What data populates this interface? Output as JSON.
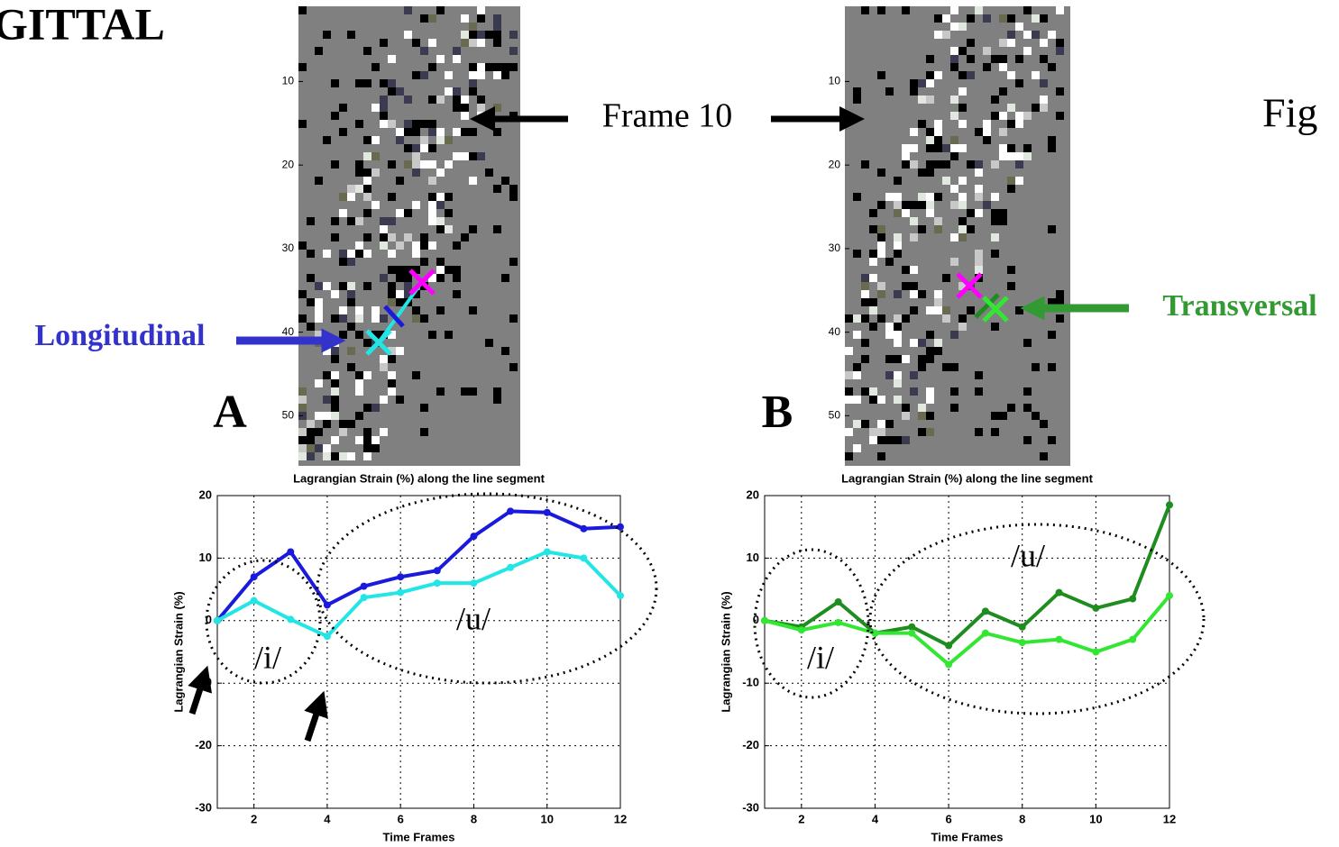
{
  "heading": "GITTAL",
  "figure_label": "Fig",
  "frame_label": "Frame 10",
  "images": [
    {
      "panel_label": "A",
      "arrow_label": "Longitudinal",
      "ylim": [
        1,
        56
      ],
      "yticks": [
        10,
        20,
        30,
        40,
        50
      ]
    },
    {
      "panel_label": "B",
      "arrow_label": "Transversal",
      "ylim": [
        1,
        56
      ],
      "yticks": [
        10,
        20,
        30,
        40,
        50
      ]
    }
  ],
  "chart_data": [
    {
      "type": "line",
      "title": "Lagrangian Strain (%) along the line segment",
      "x_label": "Time Frames",
      "y_label": "Lagrangian Strain (%)",
      "x": [
        1,
        2,
        3,
        4,
        5,
        6,
        7,
        8,
        9,
        10,
        11,
        12
      ],
      "xlim": [
        1,
        12
      ],
      "xticks": [
        2,
        4,
        6,
        8,
        10,
        12
      ],
      "ylim": [
        -30,
        20
      ],
      "yticks": [
        -30,
        -20,
        -10,
        0,
        10,
        20
      ],
      "grid": true,
      "annotations": [
        "/i/",
        "/u/"
      ],
      "series": [
        {
          "color": "#1a1adc",
          "values": [
            0,
            7,
            11,
            2.5,
            5.5,
            7,
            8,
            13.5,
            17.5,
            17.3,
            14.7,
            15
          ]
        },
        {
          "color": "#22e5e5",
          "values": [
            0,
            3.2,
            0.2,
            -2.5,
            3.7,
            4.5,
            6,
            6,
            8.5,
            11,
            10,
            4
          ]
        }
      ]
    },
    {
      "type": "line",
      "title": "Lagrangian Strain (%) along the line segment",
      "x_label": "Time Frames",
      "y_label": "Lagrangian Strain (%)",
      "x": [
        1,
        2,
        3,
        4,
        5,
        6,
        7,
        8,
        9,
        10,
        11,
        12
      ],
      "xlim": [
        1,
        12
      ],
      "xticks": [
        2,
        4,
        6,
        8,
        10,
        12
      ],
      "ylim": [
        -30,
        20
      ],
      "yticks": [
        -30,
        -20,
        -10,
        0,
        10,
        20
      ],
      "grid": true,
      "annotations": [
        "/i/",
        "/u/"
      ],
      "series": [
        {
          "color": "#1e8c1e",
          "values": [
            0,
            -1,
            3,
            -2,
            -1,
            -4,
            1.5,
            -1,
            4.5,
            2,
            3.5,
            18.5
          ]
        },
        {
          "color": "#33e633",
          "values": [
            0,
            -1.5,
            -0.3,
            -2,
            -2,
            -7,
            -2,
            -3.5,
            -3,
            -5,
            -3,
            4
          ]
        }
      ]
    }
  ]
}
